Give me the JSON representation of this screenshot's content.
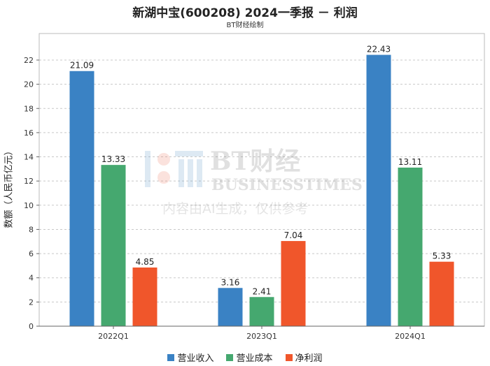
{
  "title": "新湖中宝(600208) 2024一季报 － 利润",
  "subtitle": "BT财经绘制",
  "watermark": {
    "line1": "BT财经",
    "line2": "BUSINESSTIMES",
    "line3": "内容由AI生成，仅供参考"
  },
  "chart_data": {
    "type": "bar",
    "categories": [
      "2022Q1",
      "2023Q1",
      "2024Q1"
    ],
    "series": [
      {
        "name": "营业收入",
        "values": [
          21.09,
          3.16,
          22.43
        ],
        "color": "#3a82c4"
      },
      {
        "name": "营业成本",
        "values": [
          13.33,
          2.41,
          13.11
        ],
        "color": "#45a86f"
      },
      {
        "name": "净利润",
        "values": [
          4.85,
          7.04,
          5.33
        ],
        "color": "#f0562b"
      }
    ],
    "ylabel": "数额（人民币亿元）",
    "ylim": [
      0,
      23.5
    ],
    "yticks": [
      0,
      2,
      4,
      6,
      8,
      10,
      12,
      14,
      16,
      18,
      20,
      22
    ],
    "grid": true,
    "legend_position": "bottom"
  }
}
